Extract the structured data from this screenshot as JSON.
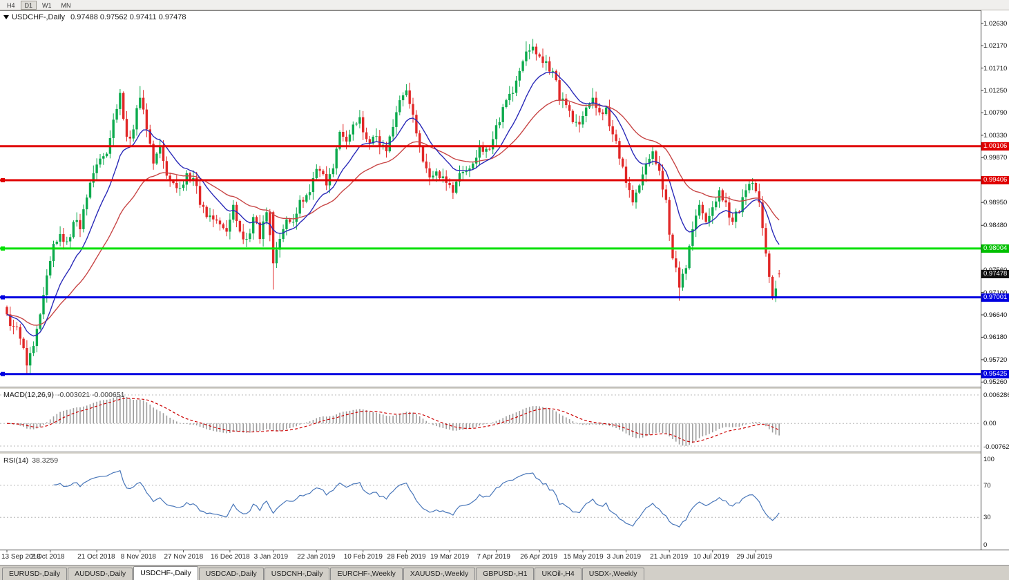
{
  "toolbar": {
    "timeframes": [
      "H4",
      "D1",
      "W1",
      "MN"
    ],
    "active": "D1"
  },
  "chart": {
    "title_symbol": "USDCHF-,Daily",
    "ohlc_text": "0.97488 0.97562 0.97411 0.97478"
  },
  "macd": {
    "label": "MACD(12,26,9)",
    "values": "-0.003021 -0.000651"
  },
  "rsi": {
    "label": "RSI(14)",
    "value": "38.3259"
  },
  "tabs": [
    {
      "label": "EURUSD-,Daily",
      "active": false
    },
    {
      "label": "AUDUSD-,Daily",
      "active": false
    },
    {
      "label": "USDCHF-,Daily",
      "active": true
    },
    {
      "label": "USDCAD-,Daily",
      "active": false
    },
    {
      "label": "USDCNH-,Daily",
      "active": false
    },
    {
      "label": "EURCHF-,Weekly",
      "active": false
    },
    {
      "label": "XAUUSD-,Weekly",
      "active": false
    },
    {
      "label": "GBPUSD-,H1",
      "active": false
    },
    {
      "label": "UKOil-,H4",
      "active": false
    },
    {
      "label": "USDX-,Weekly",
      "active": false
    }
  ],
  "chart_data": {
    "type": "candlestick",
    "symbol": "USDCHF",
    "timeframe": "Daily",
    "x_axis_dates": [
      {
        "label": "13 Sep 2018",
        "day": 0
      },
      {
        "label": "2 Oct 2018",
        "day": 13
      },
      {
        "label": "21 Oct 2018",
        "day": 27
      },
      {
        "label": "8 Nov 2018",
        "day": 40
      },
      {
        "label": "27 Nov 2018",
        "day": 53
      },
      {
        "label": "16 Dec 2018",
        "day": 67
      },
      {
        "label": "3 Jan 2019",
        "day": 80
      },
      {
        "label": "22 Jan 2019",
        "day": 93
      },
      {
        "label": "10 Feb 2019",
        "day": 107
      },
      {
        "label": "28 Feb 2019",
        "day": 120
      },
      {
        "label": "19 Mar 2019",
        "day": 133
      },
      {
        "label": "7 Apr 2019",
        "day": 147
      },
      {
        "label": "26 Apr 2019",
        "day": 160
      },
      {
        "label": "15 May 2019",
        "day": 173
      },
      {
        "label": "3 Jun 2019",
        "day": 186
      },
      {
        "label": "21 Jun 2019",
        "day": 199
      },
      {
        "label": "10 Jul 2019",
        "day": 212
      },
      {
        "label": "29 Jul 2019",
        "day": 225
      }
    ],
    "price_axis": {
      "min": 0.9525,
      "max": 1.0274,
      "visible_ticks": [
        "1.02630",
        "1.02170",
        "1.01710",
        "1.01250",
        "1.00790",
        "1.00330",
        "0.99870",
        "0.98950",
        "0.98480",
        "0.97560",
        "0.97100",
        "0.96640",
        "0.96180",
        "0.95720",
        "0.95260"
      ],
      "badges": [
        {
          "text": "1.00106",
          "price": 1.00106,
          "bg": "#e00000"
        },
        {
          "text": "0.99406",
          "price": 0.99406,
          "bg": "#e00000"
        },
        {
          "text": "0.98004",
          "price": 0.98004,
          "bg": "#00c000"
        },
        {
          "text": "0.97478",
          "price": 0.97478,
          "bg": "#101010"
        },
        {
          "text": "0.97001",
          "price": 0.97001,
          "bg": "#0000e0"
        },
        {
          "text": "0.95425",
          "price": 0.95425,
          "bg": "#0000e0"
        }
      ]
    },
    "candles": {
      "granularity_days": 2,
      "up_color": "#0caa4d",
      "down_color": "#e12727",
      "closes": [
        0.9665,
        0.964,
        0.9615,
        0.956,
        0.96,
        0.9665,
        0.9745,
        0.981,
        0.983,
        0.9815,
        0.9855,
        0.984,
        0.9905,
        0.9955,
        0.9985,
        0.9995,
        1.0065,
        1.012,
        1.003,
        1.0045,
        1.011,
        1.0045,
        0.9975,
        1.001,
        0.995,
        0.9935,
        0.9925,
        0.9955,
        0.9945,
        0.989,
        0.9865,
        0.986,
        0.985,
        0.9835,
        0.989,
        0.9835,
        0.982,
        0.9865,
        0.982,
        0.9875,
        0.977,
        0.982,
        0.986,
        0.9855,
        0.99,
        0.991,
        0.9945,
        0.996,
        0.993,
        0.9965,
        1.004,
        1.002,
        1.0055,
        1.007,
        1.0025,
        1.003,
        1.001,
        1.0,
        1.005,
        1.0105,
        1.0125,
        1.0075,
        1.001,
        0.9965,
        0.995,
        0.9945,
        0.9935,
        0.9915,
        0.9955,
        0.996,
        0.9975,
        1.001,
        1.0005,
        1.0025,
        1.006,
        1.0105,
        1.012,
        1.0165,
        1.0205,
        1.0215,
        1.0195,
        1.0185,
        1.0165,
        1.0105,
        1.0095,
        1.006,
        1.0055,
        1.009,
        1.011,
        1.008,
        1.009,
        1.0035,
        0.9985,
        0.9935,
        0.9895,
        0.993,
        0.9975,
        1.0,
        0.996,
        0.99,
        0.978,
        0.972,
        0.976,
        0.984,
        0.989,
        0.9855,
        0.9885,
        0.992,
        0.9895,
        0.9855,
        0.9875,
        0.992,
        0.9935,
        0.9895,
        0.979,
        0.97,
        0.97478
      ],
      "extremes": [
        {
          "k": 6,
          "low": 0.95425
        },
        {
          "k": 34,
          "high": 1.0128
        },
        {
          "k": 40,
          "high": 1.0134
        },
        {
          "k": 80,
          "open": 0.9875,
          "low": 0.9716
        },
        {
          "k": 106,
          "high": 1.0085
        },
        {
          "k": 120,
          "high": 1.0138
        },
        {
          "k": 156,
          "high": 1.0226
        },
        {
          "k": 158,
          "high": 1.0231
        },
        {
          "k": 176,
          "high": 1.013
        },
        {
          "k": 194,
          "high": 1.001
        },
        {
          "k": 202,
          "low": 0.9693
        },
        {
          "k": 224,
          "high": 0.9945
        },
        {
          "k": 230,
          "low": 0.9695
        }
      ],
      "last_candle": {
        "open": 0.97488,
        "high": 0.97562,
        "low": 0.97411,
        "close": 0.97478
      }
    },
    "overlays": {
      "ma_fast": {
        "type": "ema",
        "period": 13,
        "color": "#2929b8"
      },
      "ma_slow": {
        "type": "ema",
        "period": 34,
        "color": "#c84646"
      },
      "hlines": [
        {
          "price": 1.00106,
          "color": "#e00000",
          "marker": false
        },
        {
          "price": 0.99406,
          "color": "#e00000",
          "marker": true
        },
        {
          "price": 0.98004,
          "color": "#00e000",
          "marker": true
        },
        {
          "price": 0.97001,
          "color": "#0000e0",
          "marker": true
        },
        {
          "price": 0.95425,
          "color": "#0000e0",
          "marker": true
        }
      ],
      "current_price": 0.97478
    },
    "indicators": {
      "macd": {
        "params": [
          12,
          26,
          9
        ],
        "current_main": -0.003021,
        "current_signal": -0.000651,
        "axis_labels": [
          "0.006286",
          "0.00",
          "-0.00762"
        ],
        "histogram_color": "#9c9c9c",
        "signal_color": "#cc0000"
      },
      "rsi": {
        "params": [
          14
        ],
        "current": 38.3259,
        "levels": [
          70,
          30
        ],
        "axis_labels": [
          "100",
          "70",
          "30",
          "0"
        ],
        "line_color": "#4876b9"
      }
    }
  }
}
